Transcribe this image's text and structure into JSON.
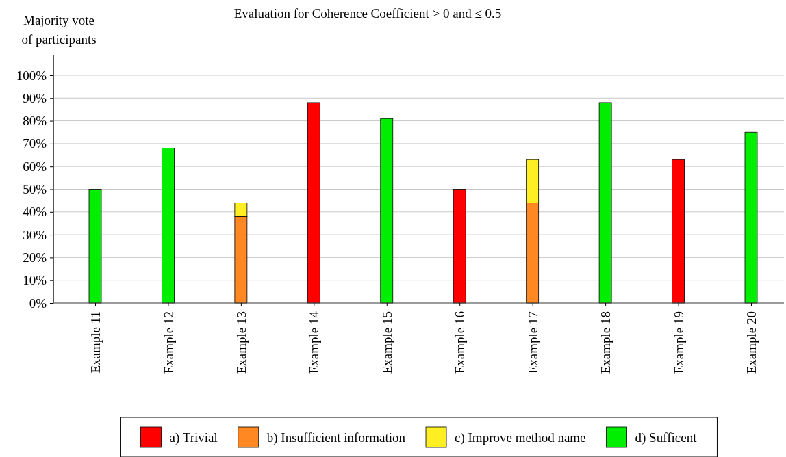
{
  "chart_data": {
    "type": "bar",
    "title": "Evaluation for Coherence Coefficient > 0 and ≤ 0.5",
    "ylabel": "Majority vote\nof participants",
    "categories": [
      "Example 11",
      "Example 12",
      "Example 13",
      "Example 14",
      "Example 15",
      "Example 16",
      "Example 17",
      "Example 18",
      "Example 19",
      "Example 20"
    ],
    "stacked": true,
    "series": [
      {
        "name": "a) Trivial",
        "color": "#ff0000",
        "values": [
          null,
          null,
          null,
          88,
          null,
          50,
          null,
          null,
          63,
          null
        ]
      },
      {
        "name": "b) Insufficient information",
        "color": "#ff8822",
        "values": [
          null,
          null,
          38,
          null,
          null,
          null,
          44,
          null,
          null,
          null
        ]
      },
      {
        "name": "c) Improve method name",
        "color": "#ffee22",
        "values": [
          null,
          null,
          6,
          null,
          null,
          null,
          19,
          null,
          null,
          null
        ]
      },
      {
        "name": "d) Sufficent",
        "color": "#00ee00",
        "values": [
          50,
          68,
          null,
          null,
          81,
          null,
          null,
          88,
          null,
          75
        ]
      }
    ],
    "ylim": [
      0,
      109
    ],
    "yticks": [
      {
        "value": 0,
        "label": "0%"
      },
      {
        "value": 10,
        "label": "10%"
      },
      {
        "value": 20,
        "label": "20%"
      },
      {
        "value": 30,
        "label": "30%"
      },
      {
        "value": 40,
        "label": "40%"
      },
      {
        "value": 50,
        "label": "50%"
      },
      {
        "value": 60,
        "label": "60%"
      },
      {
        "value": 70,
        "label": "70%"
      },
      {
        "value": 80,
        "label": "80%"
      },
      {
        "value": 90,
        "label": "90%"
      },
      {
        "value": 100,
        "label": "100%"
      }
    ],
    "grid": "y",
    "legend": "bottom"
  }
}
